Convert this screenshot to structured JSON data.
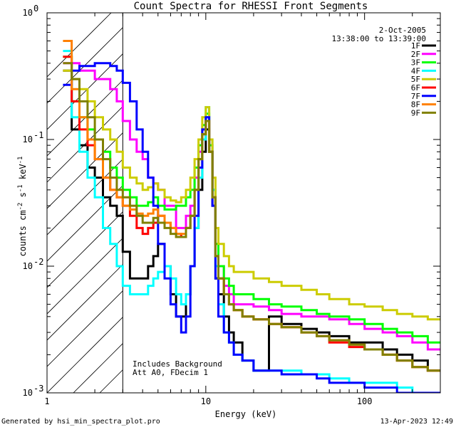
{
  "footer": {
    "generated_by": "Generated by hsi_min_spectra_plot.pro",
    "timestamp": "13-Apr-2023 12:49"
  },
  "chart_data": {
    "type": "line",
    "title": "Count Spectra for RHESSI Front Segments",
    "xlabel": "Energy (keV)",
    "ylabel": "counts cm-2 s-1 keV-1",
    "xscale": "log",
    "yscale": "log",
    "xlim": [
      1,
      300
    ],
    "ylim": [
      0.001,
      1
    ],
    "x_ticks": [
      {
        "v": 1,
        "label": "1"
      },
      {
        "v": 10,
        "label": "10"
      },
      {
        "v": 100,
        "label": "100"
      }
    ],
    "y_ticks": [
      {
        "v": 1,
        "label": "10",
        "exp": "0"
      },
      {
        "v": 0.1,
        "label": "10",
        "exp": "-1"
      },
      {
        "v": 0.01,
        "label": "10",
        "exp": "-2"
      },
      {
        "v": 0.001,
        "label": "10",
        "exp": "-3"
      }
    ],
    "attenuator_cutoff_kev": 3,
    "date": "2-Oct-2005",
    "time_range": "13:38:00 to 13:39:00",
    "annotations": [
      "Includes Background",
      "Att A0, FDecim 1"
    ],
    "energy_bins": [
      1.26,
      1.43,
      1.6,
      1.8,
      2.0,
      2.25,
      2.5,
      2.75,
      3.0,
      3.33,
      3.67,
      4.0,
      4.33,
      4.67,
      5.0,
      5.5,
      6.0,
      6.5,
      7.0,
      7.5,
      8.0,
      8.5,
      9.0,
      9.5,
      10.0,
      10.5,
      11.0,
      11.5,
      12.0,
      13.0,
      14.0,
      15.0,
      17.0,
      20.0,
      25.0,
      30.0,
      40.0,
      50.0,
      60.0,
      80.0,
      100.0,
      130.0,
      160.0,
      200.0,
      250.0,
      300.0
    ],
    "series": [
      {
        "name": "1F",
        "color": "#000000",
        "values": [
          0.35,
          0.12,
          0.09,
          0.06,
          0.05,
          0.035,
          0.03,
          0.025,
          0.013,
          0.008,
          0.008,
          0.008,
          0.01,
          0.012,
          0.015,
          0.01,
          0.006,
          0.004,
          0.004,
          0.006,
          0.01,
          0.02,
          0.04,
          0.08,
          0.12,
          0.08,
          0.03,
          0.008,
          0.006,
          0.004,
          0.003,
          0.0025,
          0.0018,
          0.0015,
          0.004,
          0.0035,
          0.0032,
          0.003,
          0.0028,
          0.0025,
          0.0025,
          0.0022,
          0.002,
          0.0018,
          0.0015
        ]
      },
      {
        "name": "2F",
        "color": "#ff00ff",
        "values": [
          0.4,
          0.4,
          0.35,
          0.35,
          0.3,
          0.3,
          0.25,
          0.2,
          0.14,
          0.1,
          0.08,
          0.07,
          0.05,
          0.045,
          0.04,
          0.03,
          0.03,
          0.02,
          0.02,
          0.025,
          0.03,
          0.05,
          0.08,
          0.12,
          0.15,
          0.09,
          0.04,
          0.015,
          0.01,
          0.007,
          0.006,
          0.005,
          0.005,
          0.0048,
          0.0045,
          0.0042,
          0.004,
          0.004,
          0.0038,
          0.0035,
          0.0032,
          0.003,
          0.0028,
          0.0025,
          0.0022
        ]
      },
      {
        "name": "3F",
        "color": "#00ff00",
        "values": [
          0.45,
          0.2,
          0.15,
          0.12,
          0.1,
          0.08,
          0.06,
          0.05,
          0.04,
          0.035,
          0.03,
          0.03,
          0.032,
          0.035,
          0.03,
          0.028,
          0.028,
          0.03,
          0.03,
          0.035,
          0.04,
          0.06,
          0.09,
          0.13,
          0.16,
          0.09,
          0.04,
          0.015,
          0.01,
          0.008,
          0.007,
          0.006,
          0.006,
          0.0055,
          0.005,
          0.0048,
          0.0045,
          0.0042,
          0.004,
          0.0038,
          0.0035,
          0.0032,
          0.003,
          0.0028,
          0.0025
        ]
      },
      {
        "name": "4F",
        "color": "#00ffff",
        "values": [
          0.5,
          0.15,
          0.08,
          0.05,
          0.035,
          0.02,
          0.015,
          0.01,
          0.007,
          0.006,
          0.006,
          0.006,
          0.007,
          0.008,
          0.009,
          0.01,
          0.008,
          0.006,
          0.005,
          0.006,
          0.01,
          0.02,
          0.05,
          0.1,
          0.18,
          0.1,
          0.04,
          0.01,
          0.005,
          0.003,
          0.0025,
          0.002,
          0.0018,
          0.0015,
          0.0015,
          0.0015,
          0.0014,
          0.0014,
          0.0013,
          0.0012,
          0.0012,
          0.0012,
          0.0011,
          0.001,
          0.001
        ]
      },
      {
        "name": "5F",
        "color": "#cccc00",
        "values": [
          0.35,
          0.3,
          0.25,
          0.2,
          0.15,
          0.12,
          0.1,
          0.08,
          0.06,
          0.05,
          0.045,
          0.04,
          0.042,
          0.045,
          0.04,
          0.035,
          0.033,
          0.032,
          0.035,
          0.04,
          0.05,
          0.07,
          0.1,
          0.15,
          0.18,
          0.1,
          0.05,
          0.02,
          0.015,
          0.012,
          0.01,
          0.009,
          0.009,
          0.008,
          0.0075,
          0.007,
          0.0065,
          0.006,
          0.0055,
          0.005,
          0.0048,
          0.0045,
          0.0042,
          0.004,
          0.0038
        ]
      },
      {
        "name": "6F",
        "color": "#ff0000",
        "values": [
          0.45,
          0.2,
          0.12,
          0.09,
          0.07,
          0.05,
          0.04,
          0.035,
          0.03,
          0.025,
          0.02,
          0.018,
          0.02,
          0.022,
          0.025,
          0.022,
          0.02,
          0.018,
          0.017,
          0.02,
          0.025,
          0.04,
          0.07,
          0.11,
          0.14,
          0.08,
          0.035,
          0.012,
          0.008,
          0.006,
          0.005,
          0.0045,
          0.004,
          0.0038,
          0.0035,
          0.0033,
          0.003,
          0.0028,
          0.0025,
          0.0023,
          0.0022,
          0.002,
          0.0018,
          0.0016,
          0.0015
        ]
      },
      {
        "name": "7F",
        "color": "#0000ff",
        "values": [
          0.27,
          0.35,
          0.38,
          0.38,
          0.4,
          0.4,
          0.38,
          0.35,
          0.28,
          0.2,
          0.12,
          0.08,
          0.05,
          0.03,
          0.015,
          0.008,
          0.005,
          0.004,
          0.003,
          0.004,
          0.01,
          0.025,
          0.06,
          0.12,
          0.15,
          0.08,
          0.03,
          0.008,
          0.004,
          0.003,
          0.0025,
          0.002,
          0.0018,
          0.0015,
          0.0015,
          0.0014,
          0.0014,
          0.0013,
          0.0012,
          0.0012,
          0.0011,
          0.0011,
          0.001,
          0.001,
          0.001
        ]
      },
      {
        "name": "8F",
        "color": "#ff8000",
        "values": [
          0.6,
          0.25,
          0.15,
          0.1,
          0.07,
          0.05,
          0.04,
          0.035,
          0.03,
          0.028,
          0.026,
          0.025,
          0.026,
          0.028,
          0.025,
          0.022,
          0.02,
          0.018,
          0.018,
          0.02,
          0.025,
          0.04,
          0.07,
          0.11,
          0.14,
          0.08,
          0.035,
          0.012,
          0.008,
          0.006,
          0.005,
          0.0045,
          0.004,
          0.0038,
          0.0035,
          0.0033,
          0.003,
          0.0028,
          0.0026,
          0.0024,
          0.0022,
          0.002,
          0.0018,
          0.0016,
          0.0015
        ]
      },
      {
        "name": "9F",
        "color": "#808000",
        "values": [
          0.4,
          0.3,
          0.2,
          0.15,
          0.1,
          0.07,
          0.05,
          0.04,
          0.035,
          0.03,
          0.025,
          0.022,
          0.022,
          0.024,
          0.022,
          0.02,
          0.018,
          0.017,
          0.017,
          0.02,
          0.025,
          0.04,
          0.07,
          0.11,
          0.14,
          0.08,
          0.035,
          0.012,
          0.008,
          0.006,
          0.005,
          0.0045,
          0.004,
          0.0038,
          0.0035,
          0.0033,
          0.003,
          0.0028,
          0.0026,
          0.0024,
          0.0022,
          0.002,
          0.0018,
          0.0016,
          0.0015
        ]
      }
    ]
  }
}
